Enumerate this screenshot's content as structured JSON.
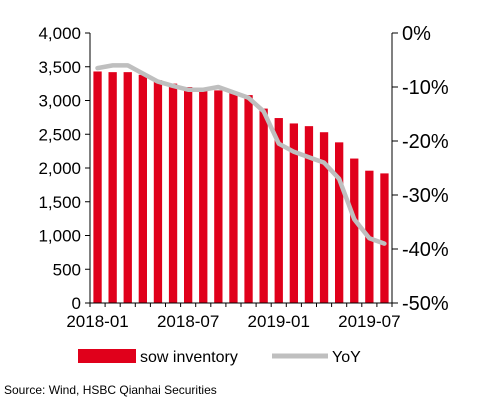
{
  "chart_data": {
    "type": "bar",
    "categories": [
      "2018-01",
      "2018-02",
      "2018-03",
      "2018-04",
      "2018-05",
      "2018-06",
      "2018-07",
      "2018-08",
      "2018-09",
      "2018-10",
      "2018-11",
      "2018-12",
      "2019-01",
      "2019-02",
      "2019-03",
      "2019-04",
      "2019-05",
      "2019-06",
      "2019-07",
      "2019-08"
    ],
    "x_tick_labels": [
      "2018-01",
      "2018-07",
      "2019-01",
      "2019-07"
    ],
    "x_tick_indices": [
      0,
      6,
      12,
      18
    ],
    "series": [
      {
        "name": "sow inventory",
        "type": "bar",
        "axis": "left",
        "color": "#e0001b",
        "values": [
          3430,
          3420,
          3420,
          3380,
          3300,
          3250,
          3200,
          3150,
          3150,
          3120,
          3080,
          2880,
          2740,
          2660,
          2620,
          2530,
          2380,
          2140,
          1960,
          1920
        ]
      },
      {
        "name": "YoY",
        "type": "line",
        "axis": "right",
        "color": "#bfbfbf",
        "values": [
          -6.5,
          -6.0,
          -6.0,
          -7.5,
          -9.0,
          -9.8,
          -10.5,
          -10.5,
          -10.0,
          -11.0,
          -12.0,
          -14.5,
          -20.5,
          -22.0,
          -23.0,
          -24.0,
          -27.0,
          -34.5,
          -38.0,
          -39.0
        ]
      }
    ],
    "y_left": {
      "min": 0,
      "max": 4000,
      "ticks": [
        "0",
        "500",
        "1,000",
        "1,500",
        "2,000",
        "2,500",
        "3,000",
        "3,500",
        "4,000"
      ]
    },
    "y_right": {
      "min": -50,
      "max": 0,
      "ticks": [
        "-50%",
        "-40%",
        "-30%",
        "-20%",
        "-10%",
        "0%"
      ]
    },
    "grid": false,
    "legend_position": "bottom"
  },
  "source": "Source: Wind, HSBC Qianhai Securities"
}
